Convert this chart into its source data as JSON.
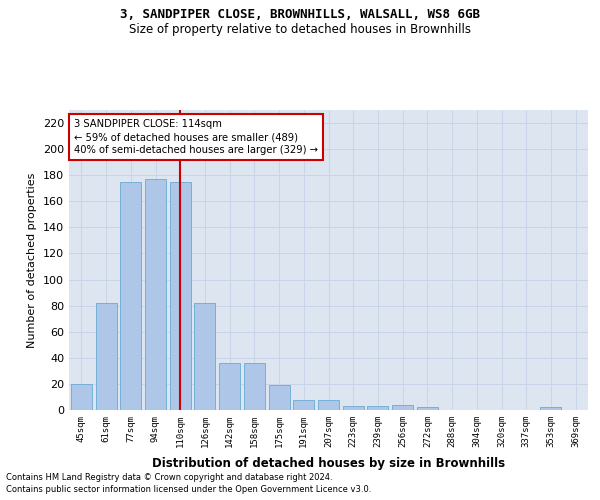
{
  "title1": "3, SANDPIPER CLOSE, BROWNHILLS, WALSALL, WS8 6GB",
  "title2": "Size of property relative to detached houses in Brownhills",
  "xlabel": "Distribution of detached houses by size in Brownhills",
  "ylabel": "Number of detached properties",
  "bar_labels": [
    "45sqm",
    "61sqm",
    "77sqm",
    "94sqm",
    "110sqm",
    "126sqm",
    "142sqm",
    "158sqm",
    "175sqm",
    "191sqm",
    "207sqm",
    "223sqm",
    "239sqm",
    "256sqm",
    "272sqm",
    "288sqm",
    "304sqm",
    "320sqm",
    "337sqm",
    "353sqm",
    "369sqm"
  ],
  "bar_values": [
    20,
    82,
    175,
    177,
    175,
    82,
    36,
    36,
    19,
    8,
    8,
    3,
    3,
    4,
    2,
    0,
    0,
    0,
    0,
    2,
    0
  ],
  "bar_color": "#aec6e8",
  "bar_edge_color": "#6aaad4",
  "property_line_index": 4,
  "property_line_color": "#cc0000",
  "annotation_line1": "3 SANDPIPER CLOSE: 114sqm",
  "annotation_line2": "← 59% of detached houses are smaller (489)",
  "annotation_line3": "40% of semi-detached houses are larger (329) →",
  "annotation_box_color": "#ffffff",
  "annotation_box_edge": "#cc0000",
  "ylim": [
    0,
    230
  ],
  "yticks": [
    0,
    20,
    40,
    60,
    80,
    100,
    120,
    140,
    160,
    180,
    200,
    220
  ],
  "footer1": "Contains HM Land Registry data © Crown copyright and database right 2024.",
  "footer2": "Contains public sector information licensed under the Open Government Licence v3.0.",
  "grid_color": "#c8d4e8",
  "background_color": "#dde6f0"
}
